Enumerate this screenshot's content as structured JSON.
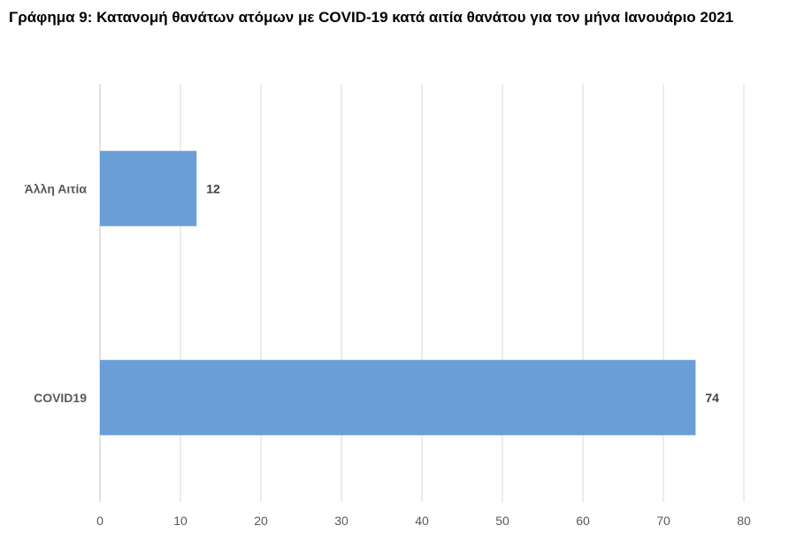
{
  "chart_data": {
    "type": "bar",
    "orientation": "horizontal",
    "title": "Γράφημα 9: Κατανομή θανάτων ατόμων με COVID-19 κατά αιτία θανάτου για τον μήνα Ιανουάριο 2021",
    "categories": [
      "Άλλη Αιτία",
      "COVID19"
    ],
    "values": [
      12,
      74
    ],
    "data_labels": [
      "12",
      "74"
    ],
    "xlim": [
      0,
      80
    ],
    "x_ticks": [
      0,
      10,
      20,
      30,
      40,
      50,
      60,
      70,
      80
    ],
    "xlabel": "",
    "ylabel": "",
    "grid": "vertical",
    "legend": "none",
    "bar_color": "#6A9ED7",
    "grid_color": "#D9D9D9"
  }
}
